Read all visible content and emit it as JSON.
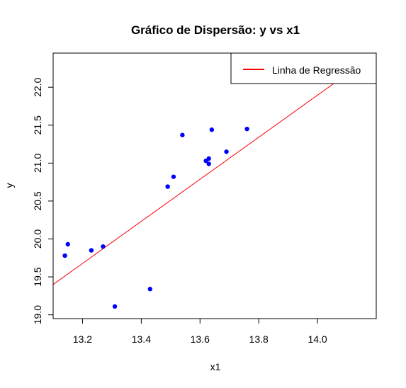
{
  "chart_data": {
    "type": "scatter",
    "title": "Gráfico de Dispersão: y vs x1",
    "xlabel": "x1",
    "ylabel": "y",
    "xlim": [
      13.1,
      14.2
    ],
    "ylim": [
      18.95,
      22.45
    ],
    "xticks": [
      "13.2",
      "13.4",
      "13.6",
      "13.8",
      "14.0"
    ],
    "yticks": [
      "19.0",
      "19.5",
      "20.0",
      "20.5",
      "21.0",
      "21.5",
      "22.0"
    ],
    "grid": false,
    "legend": {
      "position": "top-right",
      "entries": [
        {
          "label": "Linha de Regressão",
          "color": "#ff0000"
        }
      ]
    },
    "point_color": "#0000ff",
    "regression_line": {
      "color": "#ff0000",
      "points": [
        [
          13.1,
          19.4
        ],
        [
          14.2,
          22.45
        ]
      ]
    },
    "points": [
      {
        "x": 13.14,
        "y": 19.78
      },
      {
        "x": 13.15,
        "y": 19.93
      },
      {
        "x": 13.23,
        "y": 19.85
      },
      {
        "x": 13.27,
        "y": 19.9
      },
      {
        "x": 13.31,
        "y": 19.11
      },
      {
        "x": 13.43,
        "y": 19.34
      },
      {
        "x": 13.49,
        "y": 20.69
      },
      {
        "x": 13.51,
        "y": 20.82
      },
      {
        "x": 13.54,
        "y": 21.37
      },
      {
        "x": 13.62,
        "y": 21.03
      },
      {
        "x": 13.63,
        "y": 21.06
      },
      {
        "x": 13.63,
        "y": 20.99
      },
      {
        "x": 13.64,
        "y": 21.44
      },
      {
        "x": 13.69,
        "y": 21.15
      },
      {
        "x": 13.76,
        "y": 21.45
      }
    ]
  }
}
